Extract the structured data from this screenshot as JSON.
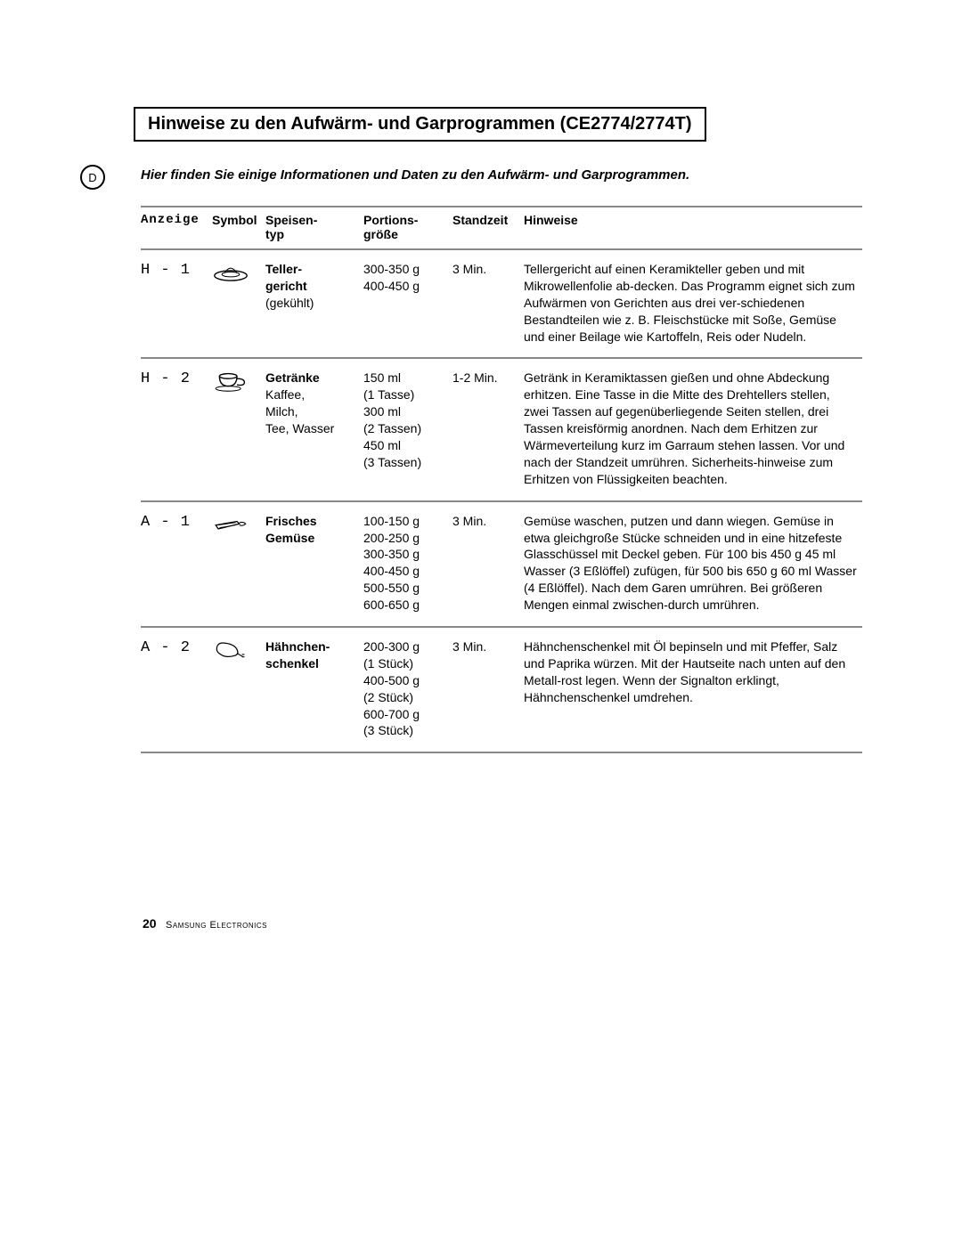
{
  "title": "Hinweise zu den Aufwärm- und Garprogrammen (CE2774/2774T)",
  "marker_letter": "D",
  "intro": "Hier finden Sie einige Informationen und Daten zu den Aufwärm- und Garprogrammen.",
  "columns": {
    "anzeige": "Anzeige",
    "symbol": "Symbol",
    "speisen1": "Speisen-",
    "speisen2": "typ",
    "portion1": "Portions-",
    "portion2": "größe",
    "standzeit": "Standzeit",
    "hinweise": "Hinweise"
  },
  "rows": [
    {
      "anzeige": "H - 1",
      "symbol_kind": "plate",
      "speisen_bold": "Teller-\ngericht",
      "speisen_plain": "(gekühlt)",
      "portion": "300-350 g\n400-450 g",
      "standzeit": "3 Min.",
      "hinweise": "Tellergericht auf einen Keramikteller geben und mit Mikrowellenfolie ab-decken. Das Programm eignet sich zum Aufwärmen von Gerichten aus drei ver-schiedenen Bestandteilen wie z. B. Fleischstücke mit Soße, Gemüse und einer Beilage wie Kartoffeln, Reis oder Nudeln."
    },
    {
      "anzeige": "H - 2",
      "symbol_kind": "cup",
      "speisen_bold": "Getränke",
      "speisen_plain": "Kaffee,\nMilch,\nTee, Wasser",
      "portion": "150 ml\n(1 Tasse)\n300 ml\n(2 Tassen)\n450 ml\n(3 Tassen)",
      "standzeit": "1-2 Min.",
      "hinweise": "Getränk in Keramiktassen gießen und ohne Abdeckung erhitzen. Eine Tasse in die Mitte des Drehtellers stellen, zwei Tassen auf gegenüberliegende Seiten stellen, drei Tassen kreisförmig anordnen. Nach dem Erhitzen zur Wärmeverteilung kurz im Garraum stehen lassen. Vor und nach der Standzeit umrühren. Sicherheits-hinweise zum Erhitzen von Flüssigkeiten beachten."
    },
    {
      "anzeige": "A - 1",
      "symbol_kind": "veg",
      "speisen_bold": "Frisches\nGemüse",
      "speisen_plain": "",
      "portion": "100-150 g\n200-250 g\n300-350 g\n400-450 g\n500-550 g\n600-650 g",
      "standzeit": "3 Min.",
      "hinweise": "Gemüse waschen, putzen und dann wiegen. Gemüse in etwa gleichgroße Stücke schneiden und in eine hitzefeste Glasschüssel mit Deckel geben. Für 100 bis 450 g 45 ml Wasser (3 Eßlöffel) zufügen, für 500 bis 650 g 60 ml Wasser (4 Eßlöffel). Nach dem Garen umrühren. Bei größeren Mengen einmal zwischen-durch umrühren."
    },
    {
      "anzeige": "A - 2",
      "symbol_kind": "chicken",
      "speisen_bold": "Hähnchen-\nschenkel",
      "speisen_plain": "",
      "portion": "200-300 g\n(1 Stück)\n400-500 g\n(2 Stück)\n600-700 g\n(3 Stück)",
      "standzeit": "3 Min.",
      "hinweise": "Hähnchenschenkel mit Öl bepinseln und mit Pfeffer, Salz und Paprika würzen. Mit der Hautseite nach unten auf den Metall-rost legen. Wenn der Signalton erklingt, Hähnchenschenkel umdrehen."
    }
  ],
  "footer": {
    "page_num": "20",
    "brand": "Samsung Electronics"
  },
  "colors": {
    "rule": "#888888",
    "text": "#000000",
    "bg": "#ffffff"
  }
}
